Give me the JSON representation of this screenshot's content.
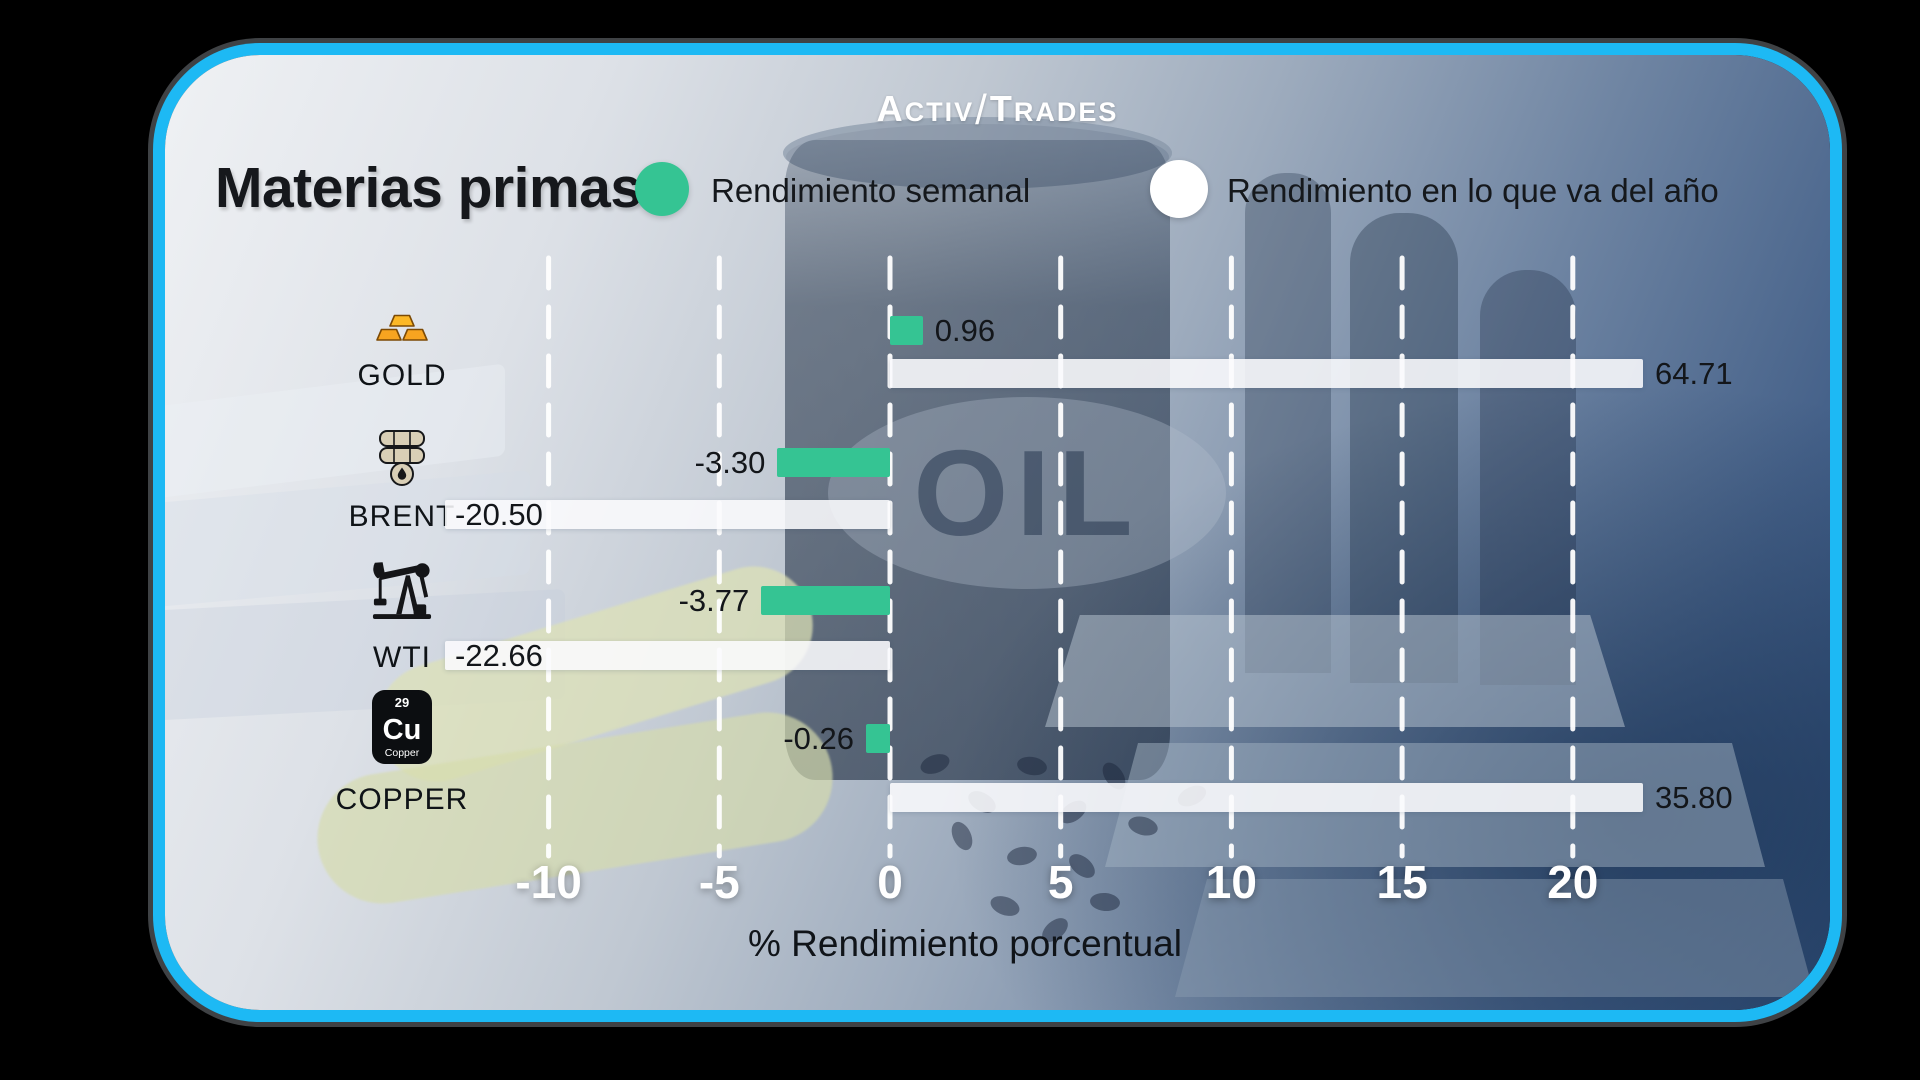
{
  "brand": {
    "w1_initial": "A",
    "w1_rest": "CTIV",
    "separator": "/",
    "w2_initial": "T",
    "w2_rest": "RADES"
  },
  "header": {
    "title": "Materias primas",
    "legend": [
      {
        "label": "Rendimiento semanal",
        "color": "#35c493"
      },
      {
        "label": "Rendimiento en lo que va del año",
        "color": "#ffffff"
      }
    ]
  },
  "chart_data": {
    "type": "bar",
    "orientation": "horizontal",
    "title": "Materias primas",
    "xlabel": "% Rendimiento porcentual",
    "x_ticks": [
      -10,
      -5,
      0,
      5,
      10,
      15,
      20
    ],
    "xlim": [
      -13,
      22.1
    ],
    "grid": "vertical-dashed-white",
    "legend_position": "top",
    "categories": [
      "GOLD",
      "BRENT",
      "WTI",
      "COPPER"
    ],
    "icons": [
      "gold-bars-icon",
      "oil-barrels-icon",
      "pumpjack-icon",
      "copper-element-icon"
    ],
    "series": [
      {
        "name": "Rendimiento semanal",
        "color": "#35c493",
        "values": [
          0.96,
          -3.3,
          -3.77,
          -0.26
        ],
        "labels": [
          "0.96",
          "-3.30",
          "-3.77",
          "-0.26"
        ]
      },
      {
        "name": "Rendimiento en lo que va del año",
        "color": "#ffffff",
        "values": [
          64.71,
          -20.5,
          -22.66,
          35.8
        ],
        "labels": [
          "64.71",
          "-20.50",
          "-22.66",
          "35.80"
        ]
      }
    ],
    "note": "bars exceeding axis range are clamped to plot edges"
  },
  "background": {
    "oil_text": "OIL"
  },
  "colors": {
    "card_border": "#1db9f4",
    "weekly_bar": "#35c493",
    "ytd_bar": "#ffffff",
    "page_bg": "#000000"
  }
}
